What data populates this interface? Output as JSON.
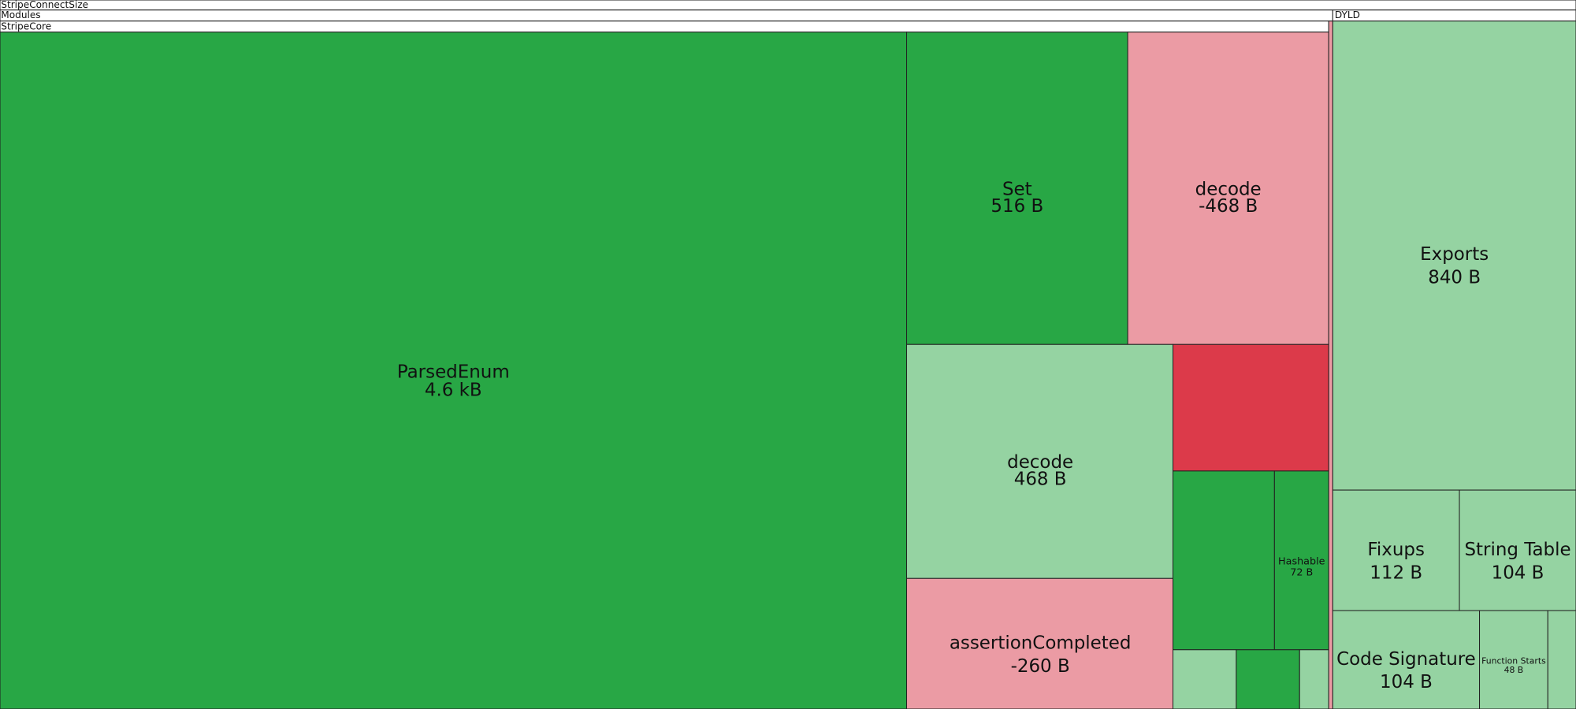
{
  "headers": {
    "root": "StripeConnectSize",
    "modules": "Modules",
    "stripe_core": "StripeCore",
    "dyld": "DYLD"
  },
  "nodes": [
    {
      "name": "ParsedEnum",
      "size": "4.6 kB"
    },
    {
      "name": "Set",
      "size": "516 B"
    },
    {
      "name": "decode",
      "size": "-468 B"
    },
    {
      "name": "decode",
      "size": "468 B"
    },
    {
      "name": "Hashable",
      "size": "72 B"
    },
    {
      "name": "assertionCompleted",
      "size": "-260 B"
    },
    {
      "name": "Exports",
      "size": "840 B"
    },
    {
      "name": "Fixups",
      "size": "112 B"
    },
    {
      "name": "String Table",
      "size": "104 B"
    },
    {
      "name": "Code Signature",
      "size": "104 B"
    },
    {
      "name": "Function Starts",
      "size": "48 B"
    }
  ]
}
